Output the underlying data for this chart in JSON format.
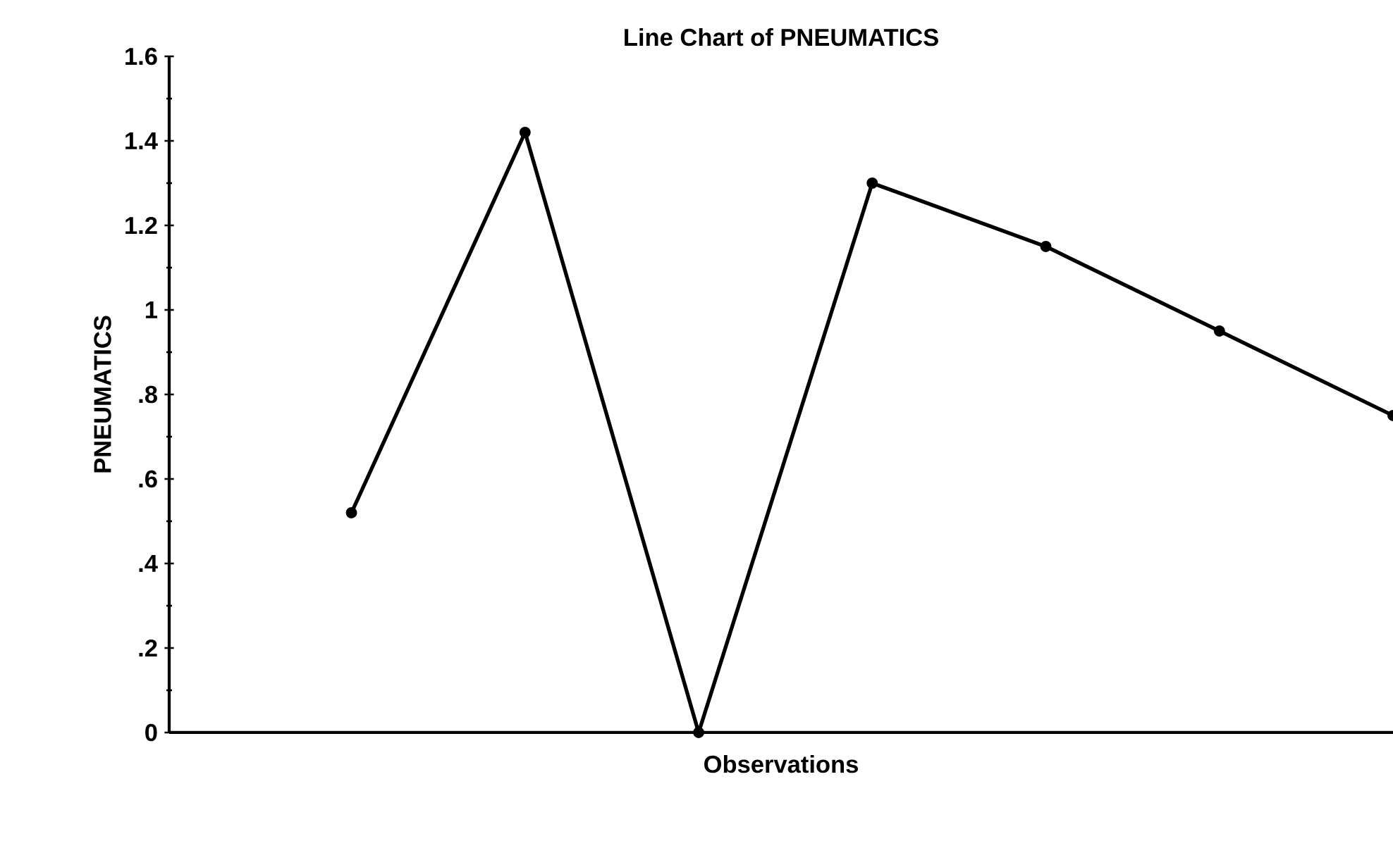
{
  "chart_data": {
    "type": "line",
    "title": "Line Chart of PNEUMATICS",
    "xlabel": "Observations",
    "ylabel": "PNEUMATICS",
    "categories": [
      null,
      null,
      null,
      null,
      null,
      null,
      null
    ],
    "series": [
      {
        "color": "#000000",
        "values": [
          0.52,
          1.42,
          0,
          1.3,
          1.15,
          0.95,
          0.75
        ]
      }
    ],
    "ylim": [
      0,
      1.6
    ],
    "yticks": [
      0,
      {
        "value": 0.2,
        "label": ".2"
      },
      {
        "value": 0.4,
        "label": ".4"
      },
      {
        "value": 0.6,
        "label": ".6"
      },
      {
        "value": 0.8,
        "label": ".8"
      },
      1,
      1.2,
      1.4,
      1.6
    ],
    "marker": "circle",
    "grid": false
  }
}
